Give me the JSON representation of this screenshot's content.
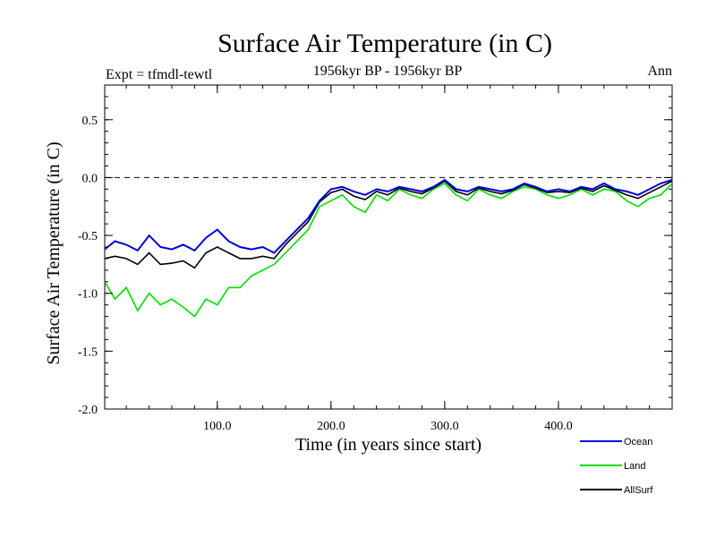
{
  "chart_data": {
    "type": "line",
    "title": "Surface Air Temperature (in C)",
    "subtitle": "1956kyr BP - 1956kyr BP",
    "left_label": "Expt = tfmdl-tewtl",
    "right_label": "Ann",
    "xlabel": "Time (in years since start)",
    "ylabel": "Surface Air Temperature (in C)",
    "xlim": [
      1,
      500
    ],
    "ylim": [
      -2.0,
      0.8
    ],
    "x_ticks": [
      100,
      200,
      300,
      400
    ],
    "x_tick_labels": [
      "100.0",
      "200.0",
      "300.0",
      "400.0"
    ],
    "y_ticks": [
      -2.0,
      -1.5,
      -1.0,
      -0.5,
      0.0,
      0.5
    ],
    "y_tick_labels": [
      "-2.0",
      "-1.5",
      "-1.0",
      "-0.5",
      "0.0",
      "0.5"
    ],
    "reference_line": 0.0,
    "legend_position": "bottom-right",
    "series": [
      {
        "name": "Ocean",
        "color": "#0000dd",
        "x": [
          1,
          10,
          20,
          30,
          40,
          50,
          60,
          70,
          80,
          90,
          100,
          110,
          120,
          130,
          140,
          150,
          160,
          170,
          180,
          190,
          200,
          210,
          220,
          230,
          240,
          250,
          260,
          270,
          280,
          290,
          300,
          310,
          320,
          330,
          340,
          350,
          360,
          370,
          380,
          390,
          400,
          410,
          420,
          430,
          440,
          450,
          460,
          470,
          480,
          490,
          500
        ],
        "values": [
          -0.62,
          -0.55,
          -0.58,
          -0.63,
          -0.5,
          -0.6,
          -0.62,
          -0.58,
          -0.63,
          -0.52,
          -0.45,
          -0.55,
          -0.6,
          -0.62,
          -0.6,
          -0.65,
          -0.55,
          -0.45,
          -0.35,
          -0.2,
          -0.1,
          -0.08,
          -0.12,
          -0.15,
          -0.1,
          -0.12,
          -0.08,
          -0.1,
          -0.12,
          -0.08,
          -0.02,
          -0.1,
          -0.12,
          -0.08,
          -0.1,
          -0.12,
          -0.1,
          -0.05,
          -0.08,
          -0.12,
          -0.1,
          -0.12,
          -0.08,
          -0.1,
          -0.05,
          -0.1,
          -0.12,
          -0.15,
          -0.1,
          -0.05,
          -0.02
        ]
      },
      {
        "name": "Land",
        "color": "#00e000",
        "x": [
          1,
          10,
          20,
          30,
          40,
          50,
          60,
          70,
          80,
          90,
          100,
          110,
          120,
          130,
          140,
          150,
          160,
          170,
          180,
          190,
          200,
          210,
          220,
          230,
          240,
          250,
          260,
          270,
          280,
          290,
          300,
          310,
          320,
          330,
          340,
          350,
          360,
          370,
          380,
          390,
          400,
          410,
          420,
          430,
          440,
          450,
          460,
          470,
          480,
          490,
          500
        ],
        "values": [
          -0.9,
          -1.05,
          -0.95,
          -1.15,
          -1.0,
          -1.1,
          -1.05,
          -1.12,
          -1.2,
          -1.05,
          -1.1,
          -0.95,
          -0.95,
          -0.85,
          -0.8,
          -0.75,
          -0.65,
          -0.55,
          -0.45,
          -0.25,
          -0.2,
          -0.15,
          -0.25,
          -0.3,
          -0.15,
          -0.2,
          -0.1,
          -0.15,
          -0.18,
          -0.1,
          -0.05,
          -0.15,
          -0.2,
          -0.1,
          -0.15,
          -0.18,
          -0.12,
          -0.08,
          -0.1,
          -0.15,
          -0.18,
          -0.15,
          -0.1,
          -0.15,
          -0.1,
          -0.12,
          -0.2,
          -0.25,
          -0.18,
          -0.15,
          -0.05
        ]
      },
      {
        "name": "AllSurf",
        "color": "#000000",
        "x": [
          1,
          10,
          20,
          30,
          40,
          50,
          60,
          70,
          80,
          90,
          100,
          110,
          120,
          130,
          140,
          150,
          160,
          170,
          180,
          190,
          200,
          210,
          220,
          230,
          240,
          250,
          260,
          270,
          280,
          290,
          300,
          310,
          320,
          330,
          340,
          350,
          360,
          370,
          380,
          390,
          400,
          410,
          420,
          430,
          440,
          450,
          460,
          470,
          480,
          490,
          500
        ],
        "values": [
          -0.7,
          -0.68,
          -0.7,
          -0.75,
          -0.65,
          -0.75,
          -0.74,
          -0.72,
          -0.78,
          -0.65,
          -0.6,
          -0.65,
          -0.7,
          -0.7,
          -0.68,
          -0.7,
          -0.58,
          -0.48,
          -0.38,
          -0.21,
          -0.13,
          -0.1,
          -0.16,
          -0.19,
          -0.12,
          -0.15,
          -0.09,
          -0.12,
          -0.14,
          -0.09,
          -0.03,
          -0.12,
          -0.15,
          -0.09,
          -0.12,
          -0.14,
          -0.11,
          -0.06,
          -0.09,
          -0.13,
          -0.12,
          -0.13,
          -0.09,
          -0.12,
          -0.07,
          -0.11,
          -0.15,
          -0.18,
          -0.13,
          -0.08,
          -0.03
        ]
      }
    ]
  }
}
